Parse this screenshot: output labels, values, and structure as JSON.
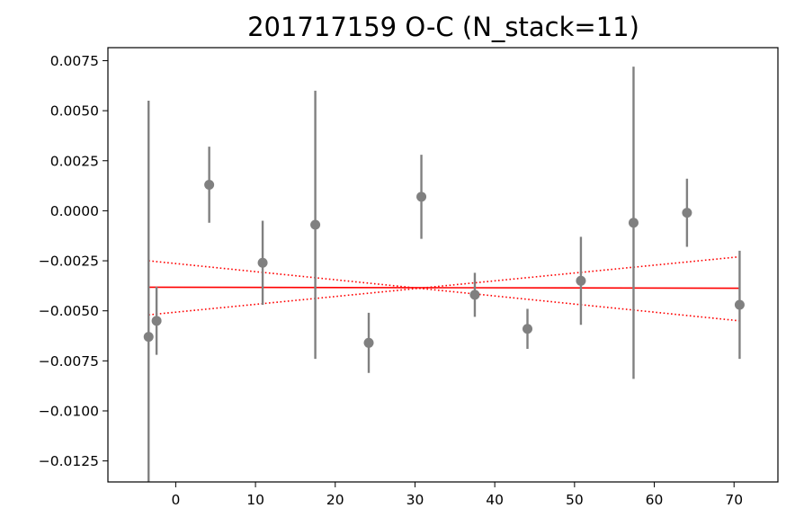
{
  "chart_data": {
    "type": "scatter",
    "title": "201717159 O-C (N_stack=11)",
    "xlabel": "",
    "ylabel": "",
    "xlim": [
      -8.5,
      75.5
    ],
    "ylim": [
      -0.01355,
      0.00815
    ],
    "grid": false,
    "x_ticks": [
      0,
      10,
      20,
      30,
      40,
      50,
      60,
      70
    ],
    "x_tick_labels": [
      "0",
      "10",
      "20",
      "30",
      "40",
      "50",
      "60",
      "70"
    ],
    "y_ticks": [
      0.0075,
      0.005,
      0.0025,
      0.0,
      -0.0025,
      -0.005,
      -0.0075,
      -0.01,
      -0.0125
    ],
    "y_tick_labels": [
      "0.0075",
      "0.0050",
      "0.0025",
      "0.0000",
      "−0.0025",
      "−0.0050",
      "−0.0075",
      "−0.0100",
      "−0.0125"
    ],
    "series": [
      {
        "kind": "errorbar",
        "color": "#808080",
        "points": [
          {
            "x": -3.4,
            "y": -0.0063,
            "yerr": 0.0118
          },
          {
            "x": -2.4,
            "y": -0.0055,
            "yerr": 0.0017
          },
          {
            "x": 4.2,
            "y": 0.0013,
            "yerr": 0.0019
          },
          {
            "x": 10.9,
            "y": -0.0026,
            "yerr": 0.0021
          },
          {
            "x": 17.5,
            "y": -0.0007,
            "yerr": 0.0067
          },
          {
            "x": 24.2,
            "y": -0.0066,
            "yerr": 0.0015
          },
          {
            "x": 30.8,
            "y": 0.0007,
            "yerr": 0.0021
          },
          {
            "x": 37.5,
            "y": -0.0042,
            "yerr": 0.0011
          },
          {
            "x": 44.1,
            "y": -0.0059,
            "yerr": 0.001
          },
          {
            "x": 50.8,
            "y": -0.0035,
            "yerr": 0.0022
          },
          {
            "x": 57.4,
            "y": -0.0006,
            "yerr": 0.0078
          },
          {
            "x": 64.1,
            "y": -0.0001,
            "yerr": 0.0017
          },
          {
            "x": 70.7,
            "y": -0.0047,
            "yerr": 0.0027
          }
        ]
      }
    ],
    "fit_lines": [
      {
        "style": "solid",
        "color": "#ff0000",
        "x": [
          -3.4,
          70.7
        ],
        "y": [
          -0.00382,
          -0.00387
        ]
      },
      {
        "style": "dotted",
        "color": "#ff0000",
        "x": [
          -3.4,
          70.7
        ],
        "y": [
          -0.0025,
          -0.0055
        ]
      },
      {
        "style": "dotted",
        "color": "#ff0000",
        "x": [
          -3.4,
          70.7
        ],
        "y": [
          -0.0052,
          -0.0023
        ]
      }
    ]
  }
}
